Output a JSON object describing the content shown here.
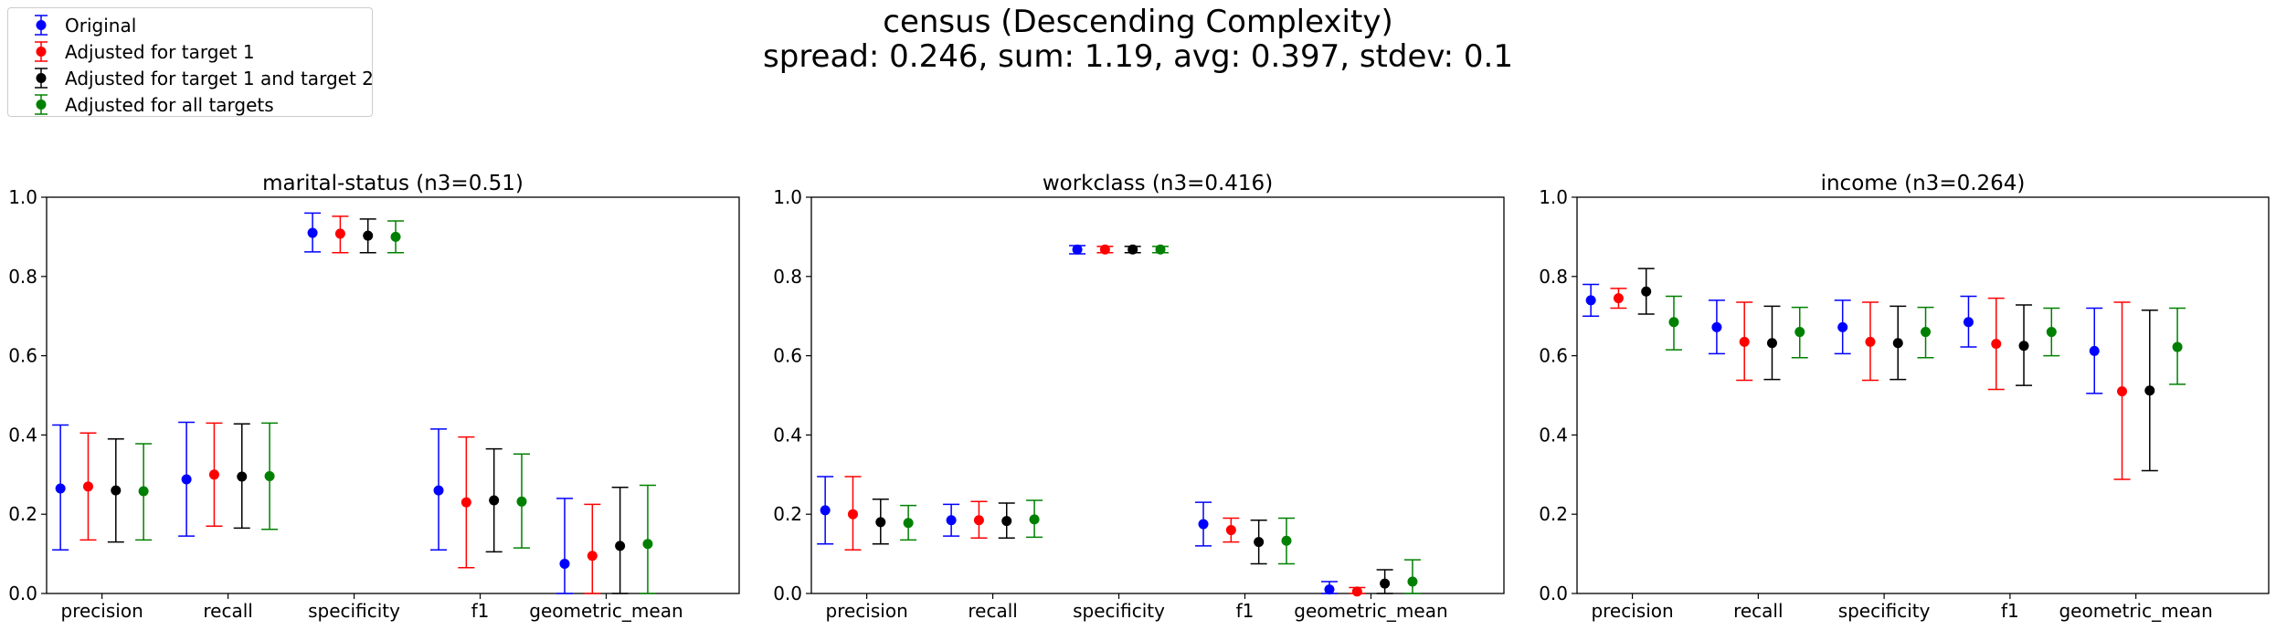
{
  "title": "census (Descending Complexity)",
  "subtitle": "spread: 0.246, sum: 1.19, avg: 0.397, stdev: 0.1",
  "legend": [
    {
      "label": "Original",
      "color": "#0000ff"
    },
    {
      "label": "Adjusted for target 1",
      "color": "#ff0000"
    },
    {
      "label": "Adjusted for target 1 and target 2",
      "color": "#000000"
    },
    {
      "label": "Adjusted for all targets",
      "color": "#008000"
    }
  ],
  "chart_data": [
    {
      "type": "scatter",
      "title": "marital-status (n3=0.51)",
      "categories": [
        "precision",
        "recall",
        "specificity",
        "f1",
        "geometric_mean"
      ],
      "ylim": [
        0,
        1
      ],
      "yticks": [
        "0.0",
        "0.2",
        "0.4",
        "0.6",
        "0.8",
        "1.0"
      ],
      "series": [
        {
          "name": "Original",
          "color": "#0000ff",
          "values": [
            0.265,
            0.288,
            0.91,
            0.26,
            0.075
          ],
          "lower": [
            0.11,
            0.145,
            0.862,
            0.11,
            0.0
          ],
          "upper": [
            0.425,
            0.432,
            0.96,
            0.415,
            0.24
          ]
        },
        {
          "name": "Adjusted for target 1",
          "color": "#ff0000",
          "values": [
            0.27,
            0.3,
            0.908,
            0.23,
            0.095
          ],
          "lower": [
            0.135,
            0.17,
            0.86,
            0.065,
            0.0
          ],
          "upper": [
            0.405,
            0.43,
            0.952,
            0.395,
            0.225
          ]
        },
        {
          "name": "Adjusted for target 1 and target 2",
          "color": "#000000",
          "values": [
            0.26,
            0.295,
            0.903,
            0.235,
            0.12
          ],
          "lower": [
            0.13,
            0.165,
            0.86,
            0.105,
            0.0
          ],
          "upper": [
            0.39,
            0.428,
            0.945,
            0.365,
            0.268
          ]
        },
        {
          "name": "Adjusted for all targets",
          "color": "#008000",
          "values": [
            0.258,
            0.296,
            0.9,
            0.232,
            0.125
          ],
          "lower": [
            0.135,
            0.162,
            0.86,
            0.115,
            0.0
          ],
          "upper": [
            0.378,
            0.43,
            0.94,
            0.352,
            0.273
          ]
        }
      ]
    },
    {
      "type": "scatter",
      "title": "workclass (n3=0.416)",
      "categories": [
        "precision",
        "recall",
        "specificity",
        "f1",
        "geometric_mean"
      ],
      "ylim": [
        0,
        1
      ],
      "yticks": [
        "0.0",
        "0.2",
        "0.4",
        "0.6",
        "0.8",
        "1.0"
      ],
      "series": [
        {
          "name": "Original",
          "color": "#0000ff",
          "values": [
            0.21,
            0.185,
            0.868,
            0.175,
            0.01
          ],
          "lower": [
            0.125,
            0.145,
            0.857,
            0.12,
            0.0
          ],
          "upper": [
            0.295,
            0.225,
            0.878,
            0.23,
            0.03
          ]
        },
        {
          "name": "Adjusted for target 1",
          "color": "#ff0000",
          "values": [
            0.2,
            0.185,
            0.868,
            0.16,
            0.005
          ],
          "lower": [
            0.11,
            0.14,
            0.86,
            0.13,
            0.0
          ],
          "upper": [
            0.295,
            0.232,
            0.876,
            0.19,
            0.015
          ]
        },
        {
          "name": "Adjusted for target 1 and target 2",
          "color": "#000000",
          "values": [
            0.18,
            0.183,
            0.868,
            0.13,
            0.025
          ],
          "lower": [
            0.125,
            0.14,
            0.86,
            0.075,
            0.0
          ],
          "upper": [
            0.238,
            0.228,
            0.876,
            0.185,
            0.06
          ]
        },
        {
          "name": "Adjusted for all targets",
          "color": "#008000",
          "values": [
            0.178,
            0.187,
            0.868,
            0.133,
            0.03
          ],
          "lower": [
            0.135,
            0.142,
            0.86,
            0.075,
            0.0
          ],
          "upper": [
            0.222,
            0.235,
            0.876,
            0.19,
            0.085
          ]
        }
      ]
    },
    {
      "type": "scatter",
      "title": "income (n3=0.264)",
      "categories": [
        "precision",
        "recall",
        "specificity",
        "f1",
        "geometric_mean"
      ],
      "ylim": [
        0,
        1
      ],
      "yticks": [
        "0.0",
        "0.2",
        "0.4",
        "0.6",
        "0.8",
        "1.0"
      ],
      "series": [
        {
          "name": "Original",
          "color": "#0000ff",
          "values": [
            0.74,
            0.672,
            0.672,
            0.685,
            0.612
          ],
          "lower": [
            0.7,
            0.605,
            0.605,
            0.622,
            0.505
          ],
          "upper": [
            0.78,
            0.74,
            0.74,
            0.75,
            0.72
          ]
        },
        {
          "name": "Adjusted for target 1",
          "color": "#ff0000",
          "values": [
            0.745,
            0.635,
            0.635,
            0.63,
            0.51
          ],
          "lower": [
            0.72,
            0.538,
            0.538,
            0.515,
            0.288
          ],
          "upper": [
            0.77,
            0.735,
            0.735,
            0.745,
            0.735
          ]
        },
        {
          "name": "Adjusted for target 1 and target 2",
          "color": "#000000",
          "values": [
            0.762,
            0.632,
            0.632,
            0.625,
            0.512
          ],
          "lower": [
            0.705,
            0.54,
            0.54,
            0.525,
            0.31
          ],
          "upper": [
            0.82,
            0.725,
            0.725,
            0.728,
            0.715
          ]
        },
        {
          "name": "Adjusted for all targets",
          "color": "#008000",
          "values": [
            0.685,
            0.66,
            0.66,
            0.66,
            0.622
          ],
          "lower": [
            0.615,
            0.595,
            0.595,
            0.6,
            0.528
          ],
          "upper": [
            0.75,
            0.722,
            0.722,
            0.72,
            0.72
          ]
        }
      ]
    }
  ]
}
